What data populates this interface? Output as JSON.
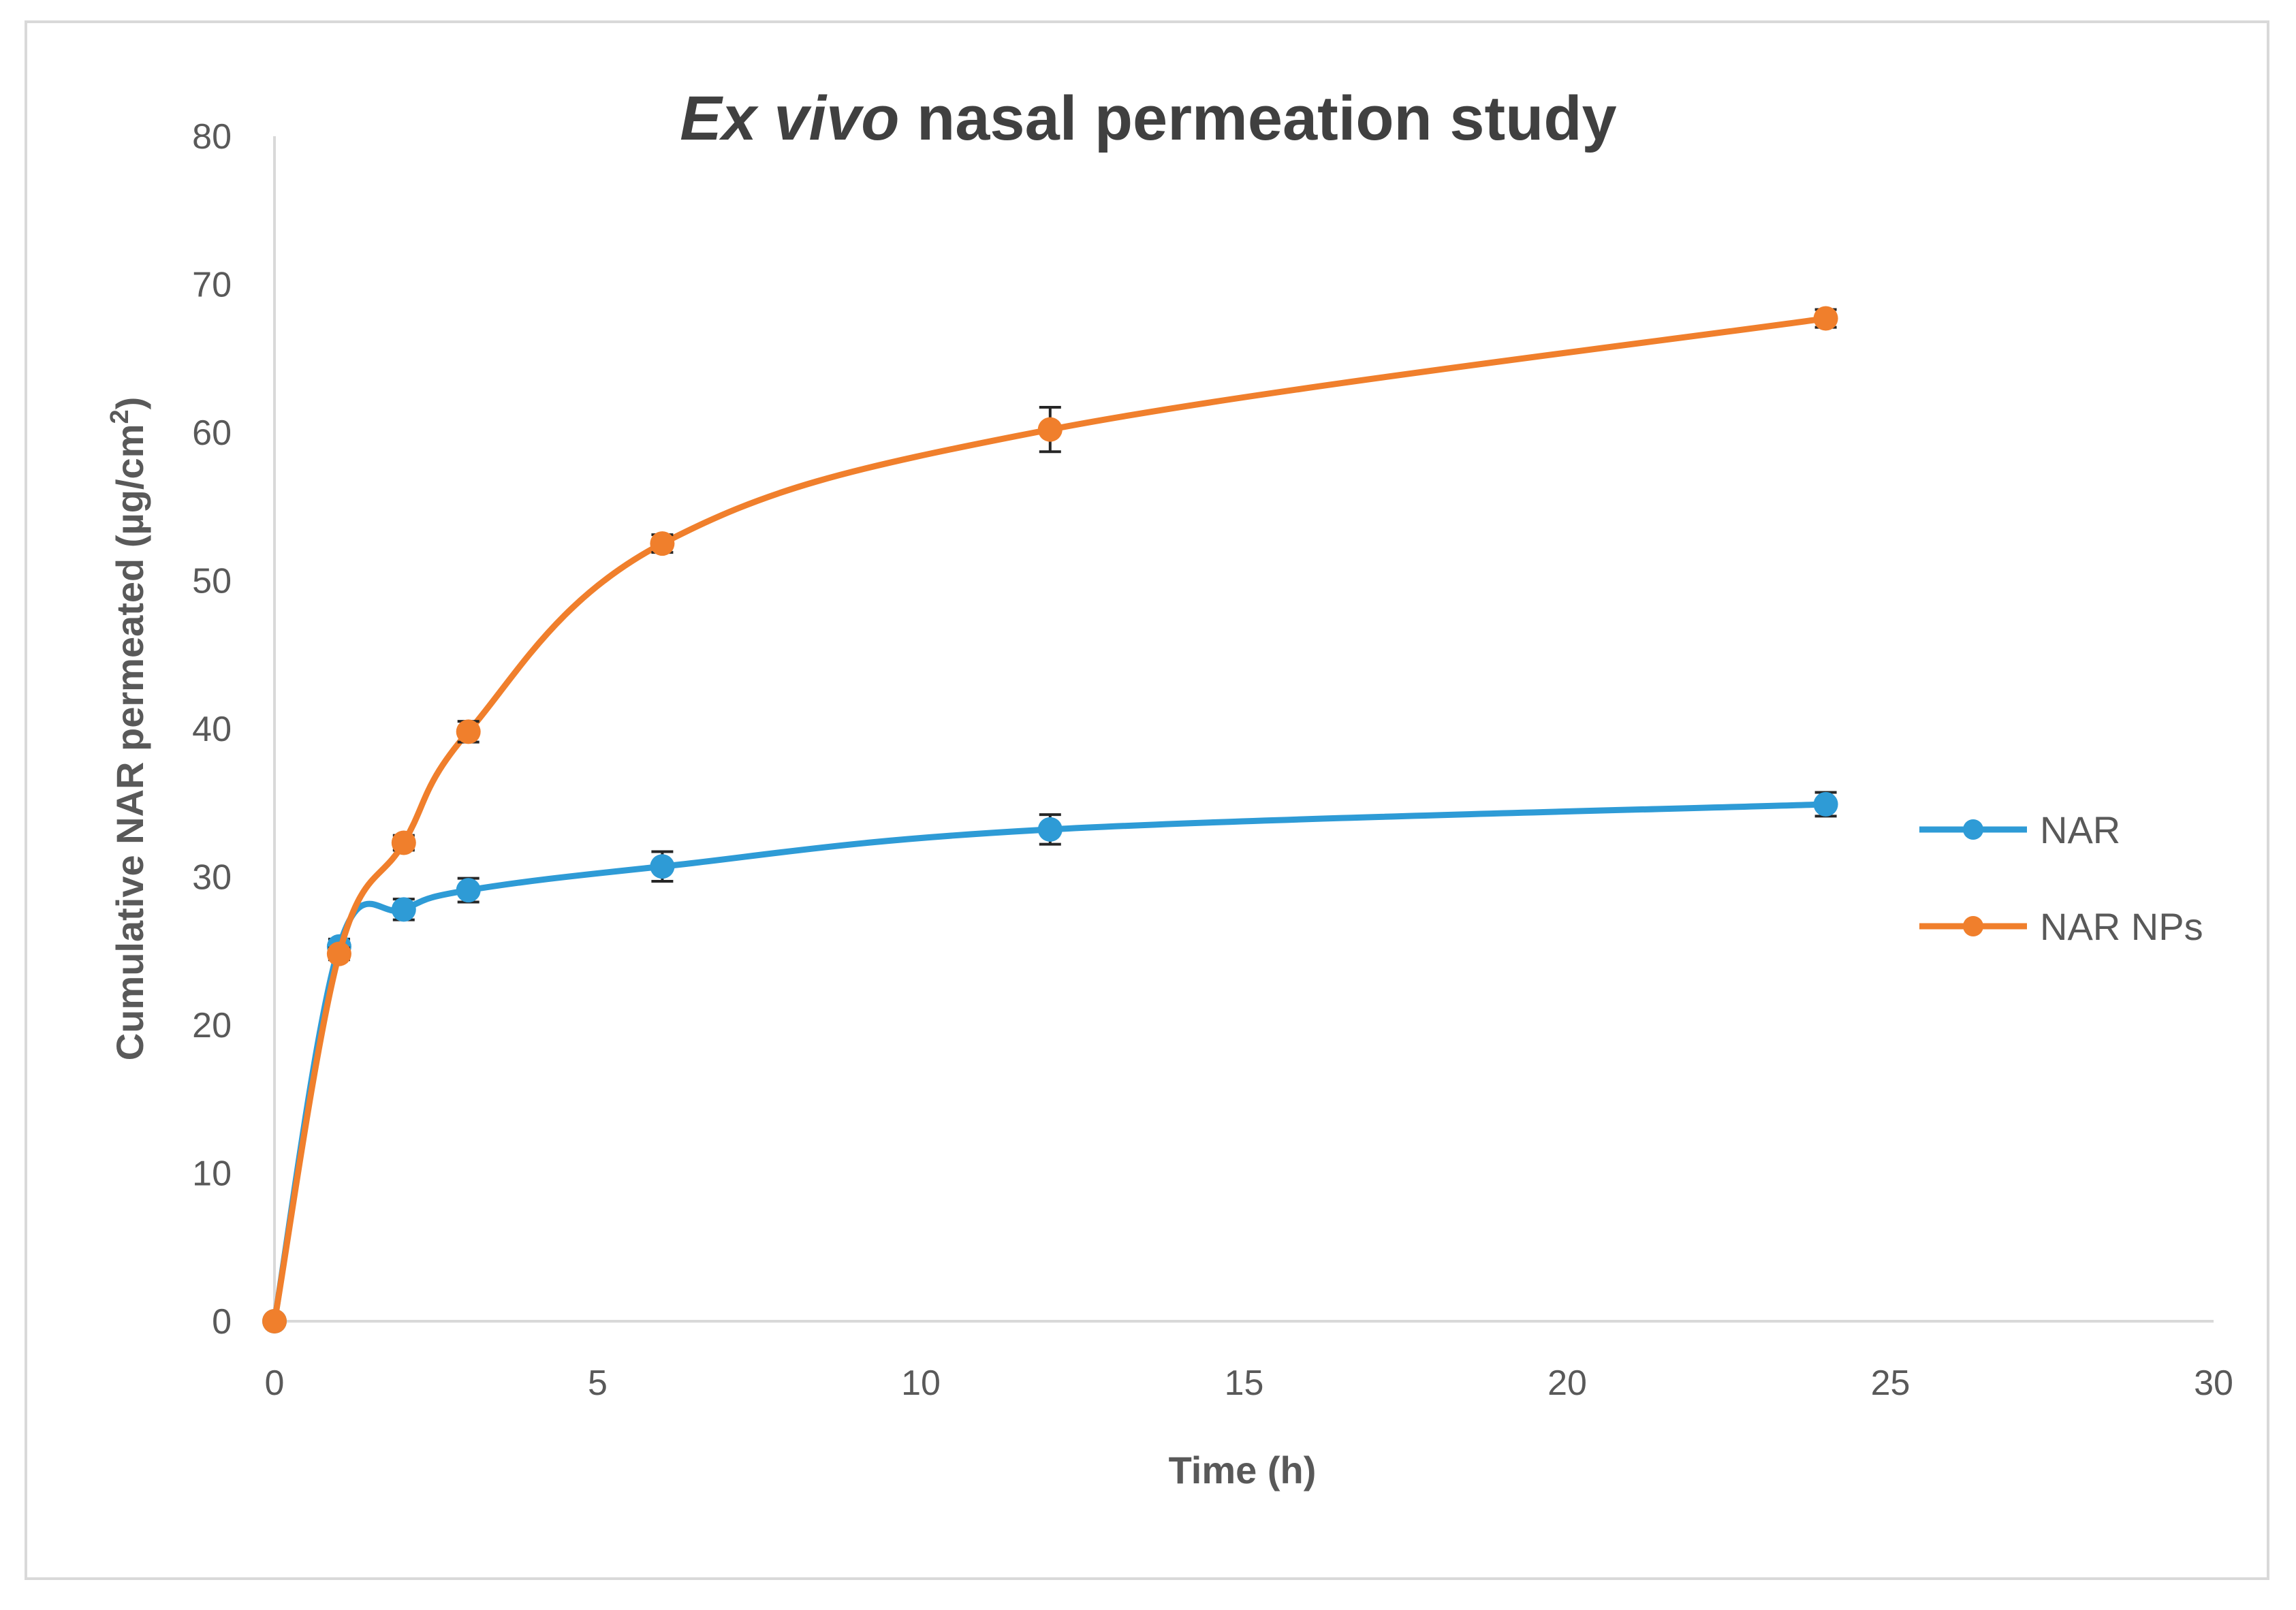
{
  "chart_data": {
    "type": "line",
    "title": "Ex vivo nasal permeation study",
    "title_italic_part": "Ex vivo",
    "title_rest": " nasal permeation study",
    "xlabel": "Time (h)",
    "ylabel": "Cumulative  NAR permeated (µg/cm",
    "ylabel_superscript": "2",
    "ylabel_close": ")",
    "xlim": [
      0,
      30
    ],
    "ylim": [
      0,
      80
    ],
    "xticks": [
      0,
      5,
      10,
      15,
      20,
      25,
      30
    ],
    "yticks": [
      0,
      10,
      20,
      30,
      40,
      50,
      60,
      70,
      80
    ],
    "grid": false,
    "legend_position": "right",
    "smooth": true,
    "series": [
      {
        "name": "NAR",
        "color": "#2e9bd6",
        "x": [
          0,
          1,
          2,
          3,
          6,
          12,
          24
        ],
        "y": [
          0,
          25.3,
          27.8,
          29.1,
          30.7,
          33.2,
          34.9
        ],
        "error": [
          0,
          0.5,
          0.7,
          0.8,
          1.0,
          1.0,
          0.8
        ]
      },
      {
        "name": "NAR NPs",
        "color": "#f07f2c",
        "x": [
          0,
          1,
          2,
          3,
          6,
          12,
          24
        ],
        "y": [
          0,
          24.8,
          32.3,
          39.8,
          52.5,
          60.2,
          67.7
        ],
        "error": [
          0,
          0.4,
          0.5,
          0.7,
          0.6,
          1.5,
          0.6
        ]
      }
    ]
  }
}
